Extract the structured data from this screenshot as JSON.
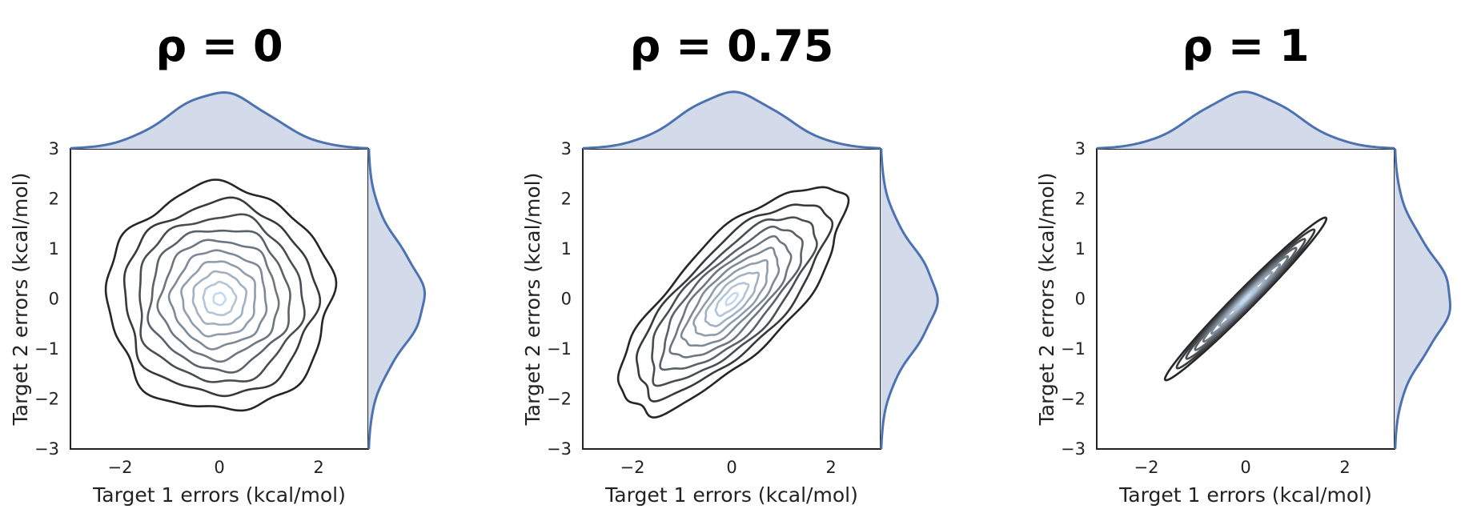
{
  "colors": {
    "marginal_line": "#4c72b0",
    "marginal_fill": "#d3dbeb",
    "contour_dark": "#262626",
    "contour_light": "#c3d9ef",
    "axes": "#222222"
  },
  "chart_data": [
    {
      "type": "contour",
      "title": "ρ = 0",
      "rho": 0,
      "xlabel": "Target 1 errors (kcal/mol)",
      "ylabel": "Target 2 errors (kcal/mol)",
      "xlim": [
        -3,
        3
      ],
      "ylim": [
        -3,
        3
      ],
      "xticks": [
        -2,
        0,
        2
      ],
      "yticks": [
        -3,
        -2,
        -1,
        0,
        1,
        2,
        3
      ],
      "x_tick_labels": [
        "−2",
        "0",
        "2"
      ],
      "y_tick_labels": [
        "−3",
        "−2",
        "−1",
        "0",
        "1",
        "2",
        "3"
      ],
      "contour_levels": 10,
      "marginals": [
        "top",
        "right"
      ]
    },
    {
      "type": "contour",
      "title": "ρ = 0.75",
      "rho": 0.75,
      "xlabel": "Target 1 errors (kcal/mol)",
      "ylabel": "Target 2 errors (kcal/mol)",
      "xlim": [
        -3,
        3
      ],
      "ylim": [
        -3,
        3
      ],
      "xticks": [
        -2,
        0,
        2
      ],
      "yticks": [
        -3,
        -2,
        -1,
        0,
        1,
        2,
        3
      ],
      "x_tick_labels": [
        "−2",
        "0",
        "2"
      ],
      "y_tick_labels": [
        "−3",
        "−2",
        "−1",
        "0",
        "1",
        "2",
        "3"
      ],
      "contour_levels": 10,
      "marginals": [
        "top",
        "right"
      ]
    },
    {
      "type": "contour",
      "title": "ρ = 1",
      "rho": 1,
      "xlabel": "Target 1 errors (kcal/mol)",
      "ylabel": "Target 2 errors (kcal/mol)",
      "xlim": [
        -3,
        3
      ],
      "ylim": [
        -3,
        3
      ],
      "xticks": [
        -2,
        0,
        2
      ],
      "yticks": [
        -3,
        -2,
        -1,
        0,
        1,
        2,
        3
      ],
      "x_tick_labels": [
        "−2",
        "0",
        "2"
      ],
      "y_tick_labels": [
        "−3",
        "−2",
        "−1",
        "0",
        "1",
        "2",
        "3"
      ],
      "contour_levels": 10,
      "marginals": [
        "top",
        "right"
      ]
    }
  ]
}
